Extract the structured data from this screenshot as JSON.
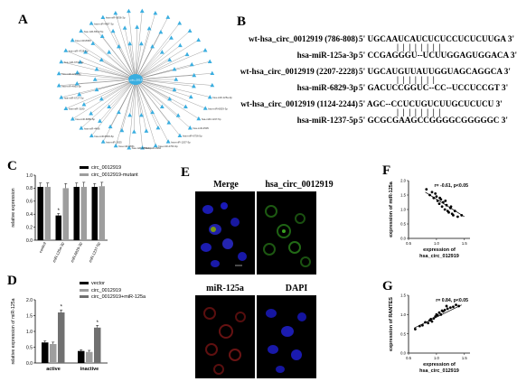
{
  "panels": {
    "a": "A",
    "b": "B",
    "c": "C",
    "d": "D",
    "e": "E",
    "f": "F",
    "g": "G"
  },
  "panel_a": {
    "center_label": "hsa_circ_0012919",
    "node_labels": [
      "hsa-miR-125a-3p",
      "hsa-miR-6829-3p",
      "hsa-miR-1237-5p",
      "hsa-miR-4505",
      "hsa-miR-6756-5p",
      "hsa-miR-1207-5p",
      "hsa-miR-4763-3p",
      "hsa-miR-3960",
      "hsa-miR-6850-5p",
      "hsa-miR-4651",
      "hsa-miR-1825",
      "hsa-miR-6803-5p",
      "hsa-miR-4486",
      "hsa-miR-6889-5p",
      "hsa-miR-3180",
      "hsa-miR-6727-5p",
      "hsa-miR-4665-5p",
      "hsa-miR-1224-5p",
      "hsa-miR-6791-5p",
      "hsa-miR-4728-5p",
      "hsa-miR-8063",
      "hsa-miR-6510-5p",
      "hsa-miR-4687-3p",
      "hsa-miR-6836-3p"
    ]
  },
  "panel_b": {
    "rows": [
      {
        "name": "wt-hsa_circ_0012919 (786-808)",
        "seq": "5' UGCAAUCAUCUCUCCUCUCUUGA 3'",
        "pairing": "|  |  |  |  |  |  |  |",
        "mirna": "hsa-miR-125a-3p",
        "mirseq": "5' CCGAGGGU--UCUUGGAGUGGACA 3'"
      },
      {
        "name": "wt-hsa_circ_0012919 (2207-2228)",
        "seq": "5' UGCAUGUUAUUGGUAGCAGGCA 3'",
        "pairing": "|  |  |  |  |  |  |",
        "mirna": "hsa-miR-6829-3p",
        "mirseq": "5' GACUCCGGUC--CC--UCCUCCGT 3'"
      },
      {
        "name": "wt-hsa_circ_0012919 (1124-2244)",
        "seq": "5' AGC--CCUCUGUCUUGCUCUCU 3'",
        "pairing": "|  |  |  |  |  |  |  |",
        "mirna": "hsa-miR-1237-5p",
        "mirseq": "5' GCGCGAAGCCGGGGCGGGGGC 3'"
      }
    ]
  },
  "panel_c": {
    "legend": [
      "circ_0012919",
      "circ_0012919-mutant"
    ],
    "colors": {
      "wt": "#000000",
      "mut": "#9e9e9e"
    },
    "asterisk": "*"
  },
  "chart_data": [
    {
      "type": "bar",
      "ylabel": "relative expression",
      "ylim": [
        0,
        1.0
      ],
      "yticks": [
        "0.0",
        "0.2",
        "0.4",
        "0.6",
        "0.8",
        "1.0"
      ],
      "categories": [
        "control",
        "miR-125a-3p",
        "miR-6829-3p",
        "miR-1237-5p"
      ],
      "series": [
        {
          "name": "circ_0012919",
          "values": [
            0.82,
            0.38,
            0.82,
            0.82
          ],
          "errors": [
            0.06,
            0.03,
            0.06,
            0.05
          ]
        },
        {
          "name": "circ_0012919-mutant",
          "values": [
            0.82,
            0.8,
            0.82,
            0.83
          ],
          "errors": [
            0.06,
            0.07,
            0.07,
            0.06
          ]
        }
      ]
    },
    {
      "type": "bar",
      "ylabel": "relative expression of miR-125a",
      "ylim": [
        0,
        2.0
      ],
      "yticks": [
        "0.0",
        "0.5",
        "1.0",
        "1.5",
        "2.0"
      ],
      "categories": [
        "active",
        "inactive"
      ],
      "series": [
        {
          "name": "vector",
          "values": [
            0.65,
            0.38
          ],
          "errors": [
            0.05,
            0.04
          ]
        },
        {
          "name": "circ_0012919",
          "values": [
            0.6,
            0.35
          ],
          "errors": [
            0.06,
            0.05
          ]
        },
        {
          "name": "circ_0012919+miR-125a",
          "values": [
            1.6,
            1.12
          ],
          "errors": [
            0.08,
            0.07
          ]
        }
      ]
    },
    {
      "type": "scatter",
      "annotation": "r= -0.61, p<0.05",
      "xlabel": "expression of hsa_circ_012919",
      "ylabel": "expression of miR-125a",
      "xlim": [
        0.5,
        1.6
      ],
      "ylim": [
        0.0,
        2.0
      ],
      "xticks": [
        "0.5",
        "1.0",
        "1.5"
      ],
      "yticks": [
        "0.0",
        "0.5",
        "1.0",
        "1.5",
        "2.0"
      ],
      "x": [
        0.82,
        0.88,
        0.92,
        0.95,
        1.0,
        1.02,
        1.05,
        1.08,
        1.1,
        1.12,
        1.15,
        1.18,
        1.2,
        1.22,
        1.25,
        1.28,
        1.3,
        1.33,
        1.38,
        1.45,
        0.98,
        1.06,
        1.16,
        1.26
      ],
      "y": [
        1.7,
        1.5,
        1.6,
        1.4,
        1.45,
        1.3,
        1.2,
        1.35,
        1.1,
        1.25,
        1.0,
        1.15,
        0.95,
        0.9,
        1.05,
        0.85,
        0.8,
        0.95,
        0.75,
        0.8,
        1.55,
        1.4,
        1.3,
        1.1
      ],
      "trend": [
        [
          0.8,
          1.6
        ],
        [
          1.5,
          0.75
        ]
      ]
    },
    {
      "type": "scatter",
      "annotation": "r= 0.84, p<0.05",
      "xlabel": "expression of hsa_circ_012919",
      "ylabel": "expression of RANTES",
      "xlim": [
        0.5,
        1.6
      ],
      "ylim": [
        0.0,
        1.5
      ],
      "xticks": [
        "0.5",
        "1.0",
        "1.5"
      ],
      "yticks": [
        "0.0",
        "0.5",
        "1.0",
        "1.5"
      ],
      "x": [
        0.62,
        0.7,
        0.75,
        0.8,
        0.85,
        0.88,
        0.9,
        0.95,
        0.98,
        1.0,
        1.02,
        1.05,
        1.08,
        1.1,
        1.12,
        1.15,
        1.2,
        1.25,
        1.3,
        1.35,
        1.4,
        0.92,
        1.18
      ],
      "y": [
        0.62,
        0.7,
        0.72,
        0.8,
        0.78,
        0.85,
        0.88,
        0.9,
        0.95,
        1.0,
        0.98,
        1.05,
        1.0,
        1.1,
        1.08,
        1.12,
        1.15,
        1.18,
        1.2,
        1.25,
        1.22,
        0.82,
        1.22
      ],
      "trend": [
        [
          0.6,
          0.65
        ],
        [
          1.45,
          1.25
        ]
      ]
    }
  ],
  "panel_d": {
    "legend": [
      "vector",
      "circ_0012919",
      "circ_0012919+miR-125a"
    ],
    "colors": [
      "#000000",
      "#9e9e9e",
      "#707070"
    ],
    "asterisk": "*"
  },
  "panel_e": {
    "labels": [
      "Merge",
      "hsa_circ_0012919",
      "miR-125a",
      "DAPI"
    ]
  }
}
